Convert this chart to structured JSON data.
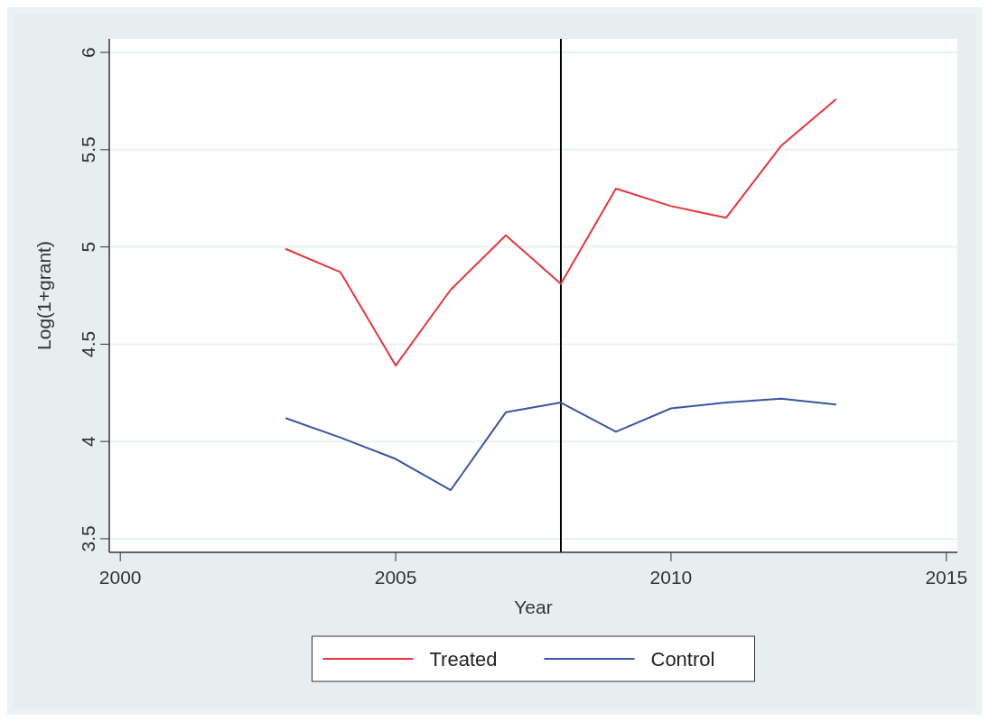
{
  "chart_data": {
    "type": "line",
    "xlabel": "Year",
    "ylabel": "Log(1+grant)",
    "x": [
      2003,
      2004,
      2005,
      2006,
      2007,
      2008,
      2009,
      2010,
      2011,
      2012,
      2013
    ],
    "series": [
      {
        "name": "Treated",
        "color": "#e8343c",
        "values": [
          4.99,
          4.87,
          4.39,
          4.78,
          5.06,
          4.81,
          5.3,
          5.21,
          5.15,
          5.52,
          5.76
        ]
      },
      {
        "name": "Control",
        "color": "#3a55a4",
        "values": [
          4.12,
          4.02,
          3.91,
          3.75,
          4.15,
          4.2,
          4.05,
          4.17,
          4.2,
          4.22,
          4.19
        ]
      }
    ],
    "xlim": [
      1999.8,
      2015.2
    ],
    "xticks": [
      2000,
      2005,
      2010,
      2015
    ],
    "ylim": [
      3.43,
      6.07
    ],
    "yticks": [
      3.5,
      4,
      4.5,
      5,
      5.5,
      6
    ],
    "ref_lines": [
      {
        "axis": "x",
        "value": 2008,
        "color": "#000000"
      }
    ],
    "grid": "y",
    "legend": "bottom",
    "marker": "none",
    "line_style": "solid"
  }
}
